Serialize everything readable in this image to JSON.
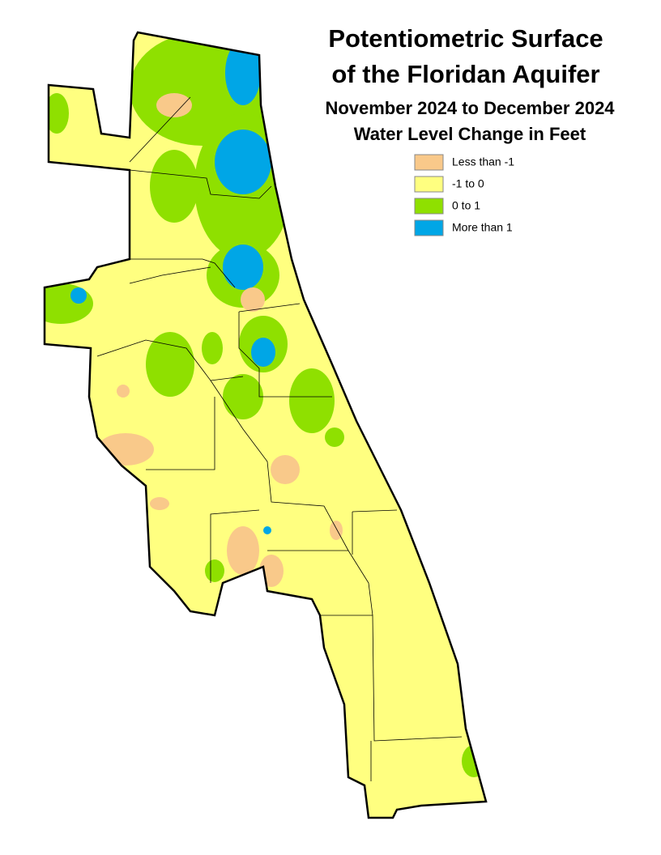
{
  "title": [
    "Potentiometric Surface",
    "of the Floridan Aquifer"
  ],
  "subtitle": [
    "November 2024 to December 2024",
    "Water Level Change in Feet"
  ],
  "legend": [
    {
      "label": "Less than -1",
      "color": "#f9c98a"
    },
    {
      "label": "-1 to 0",
      "color": "#ffff80"
    },
    {
      "label": "0 to 1",
      "color": "#8fe000"
    },
    {
      "label": "More than 1",
      "color": "#00a6e6"
    }
  ]
}
